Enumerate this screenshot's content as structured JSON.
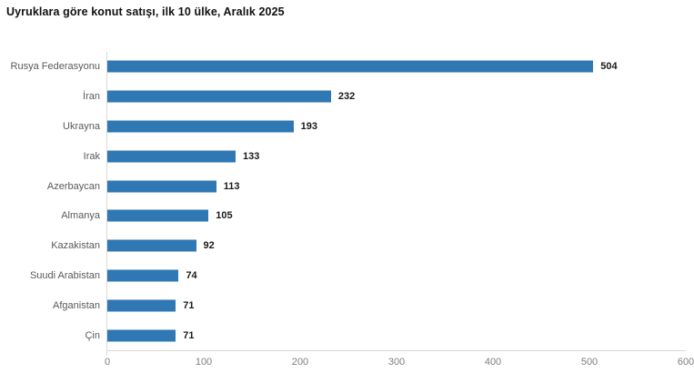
{
  "title": "Uyruklara göre konut satışı, ilk 10 ülke, Aralık 2025",
  "chart_data": {
    "type": "bar",
    "orientation": "horizontal",
    "title": "Uyruklara göre konut satışı, ilk 10 ülke, Aralık 2025",
    "categories": [
      "Rusya Federasyonu",
      "İran",
      "Ukrayna",
      "Irak",
      "Azerbaycan",
      "Almanya",
      "Kazakistan",
      "Suudi Arabistan",
      "Afganistan",
      "Çin"
    ],
    "values": [
      504,
      232,
      193,
      133,
      113,
      105,
      92,
      74,
      71,
      71
    ],
    "xlabel": "",
    "ylabel": "",
    "xlim": [
      0,
      600
    ],
    "xticks": [
      0,
      100,
      200,
      300,
      400,
      500,
      600
    ],
    "grid": false,
    "legend": false,
    "value_labels_shown": true,
    "colors": {
      "bar": "#2f78b3",
      "value_label": "#1a1a1a",
      "category_label": "#595959",
      "axis_line": "#d9d9d9",
      "tick_label": "#7f7f7f",
      "title": "#111111",
      "background": "#ffffff"
    }
  }
}
